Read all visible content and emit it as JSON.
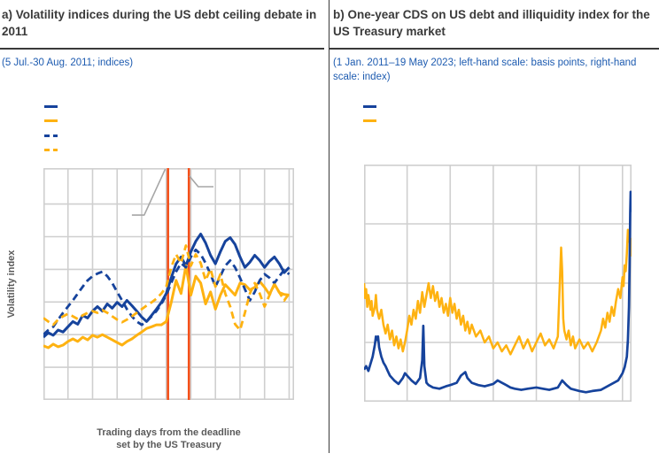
{
  "page": {
    "background": "#ffffff",
    "divider_color": "#3a3a3a"
  },
  "colors": {
    "blue": "#16439c",
    "yellow": "#feb211",
    "orange_event_line": "#f4501a",
    "grid": "#cfcfcf",
    "callout_gray": "#a6a6a6",
    "title_text": "#3a3a3a",
    "subtitle_text": "#1d5bb0",
    "axis_label_text": "#5a5a5a"
  },
  "panel_a": {
    "title": "a) Volatility indices during the US debt ceiling debate in 2011",
    "subtitle": "(5 Jul.-30 Aug. 2011; indices)",
    "ylabel": "Volatility index",
    "xlabel_line1": "Trading days from the deadline",
    "xlabel_line2": "set by the US Treasury",
    "legend": [
      {
        "name": "blue-solid",
        "color": "#16439c",
        "style": "solid",
        "label": ""
      },
      {
        "name": "yellow-solid",
        "color": "#feb211",
        "style": "solid",
        "label": ""
      },
      {
        "name": "blue-dashed",
        "color": "#16439c",
        "style": "dashed",
        "label": ""
      },
      {
        "name": "yellow-dashed",
        "color": "#feb211",
        "style": "dashed",
        "label": ""
      }
    ]
  },
  "panel_b": {
    "title": "b) One-year CDS on US debt and illiquidity index for the US Treasury market",
    "subtitle": "(1 Jan. 2011–19 May 2023; left-hand scale: basis points, right-hand scale: index)",
    "legend": [
      {
        "name": "blue-solid",
        "color": "#16439c",
        "style": "solid",
        "label": ""
      },
      {
        "name": "yellow-solid",
        "color": "#feb211",
        "style": "solid",
        "label": ""
      }
    ]
  },
  "chart_data": [
    {
      "type": "line",
      "title": "a) Volatility indices during the US debt ceiling debate in 2011",
      "subtitle": "(5 Jul.-30 Aug. 2011; indices)",
      "xlabel": "Trading days from the deadline set by the US Treasury",
      "ylabel": "Volatility index",
      "x_range": [
        -25,
        26
      ],
      "y_left_range": [
        0,
        71
      ],
      "x_gridlines": [
        -20,
        -15,
        -10,
        -5,
        0,
        5,
        10,
        15,
        20,
        25
      ],
      "y_gridlines": [
        10,
        20,
        30,
        40,
        50,
        60
      ],
      "grid_color": "#cfcfcf",
      "x": [
        -25,
        -24,
        -23,
        -22,
        -21,
        -20,
        -19,
        -18,
        -17,
        -16,
        -15,
        -14,
        -13,
        -12,
        -11,
        -10,
        -9,
        -8,
        -7,
        -6,
        -5,
        -4,
        -3,
        -2,
        -1,
        0,
        1,
        2,
        3,
        4,
        5,
        6,
        7,
        8,
        9,
        10,
        11,
        12,
        13,
        14,
        15,
        16,
        17,
        18,
        19,
        20,
        21,
        22,
        23,
        24,
        25
      ],
      "series": [
        {
          "name": "blue-solid",
          "color": "#16439c",
          "style": "solid",
          "width": 3,
          "scale": "left",
          "values": [
            19.2,
            20.6,
            19.8,
            21.4,
            20.8,
            22.4,
            24,
            23.2,
            25.9,
            25.1,
            27.2,
            28.6,
            27.2,
            29.4,
            28.1,
            29.9,
            28.6,
            30.5,
            28.9,
            27.2,
            25.4,
            24,
            25.9,
            27.8,
            29.9,
            32.6,
            37.4,
            41.7,
            43.8,
            41.1,
            45.4,
            48.6,
            50.8,
            48.1,
            44.3,
            41.7,
            45.4,
            48.6,
            49.7,
            47.6,
            43.8,
            40.6,
            42.2,
            44.3,
            42.7,
            40.6,
            42.5,
            43.8,
            41.7,
            39,
            40.6
          ]
        },
        {
          "name": "yellow-solid",
          "color": "#feb211",
          "style": "solid",
          "width": 3,
          "scale": "left",
          "values": [
            16.6,
            16,
            17.1,
            16.3,
            16.8,
            17.9,
            18.7,
            17.9,
            19.2,
            18.4,
            19.8,
            19.2,
            20,
            19.2,
            18.4,
            17.6,
            16.8,
            17.9,
            18.7,
            19.8,
            20.8,
            21.9,
            22.4,
            23,
            23,
            24,
            29.9,
            36.6,
            32.6,
            41.1,
            32.1,
            37.9,
            35.8,
            29.4,
            33.1,
            27.8,
            32.1,
            35.3,
            33.7,
            32.1,
            35.8,
            35.3,
            33.7,
            34.5,
            36.3,
            34.5,
            32.3,
            35.5,
            32.9,
            32.3,
            32.1
          ]
        },
        {
          "name": "blue-dashed",
          "color": "#16439c",
          "style": "dashed",
          "width": 2.8,
          "scale": "left",
          "values": [
            20,
            21.4,
            22.4,
            24.6,
            26.7,
            28.6,
            30.5,
            32.6,
            34.7,
            36.6,
            37.9,
            38.7,
            39.3,
            37.9,
            35.8,
            33.1,
            30.5,
            27.8,
            25.6,
            24,
            23,
            24,
            25.6,
            27.2,
            29.4,
            32.1,
            35.8,
            39.3,
            41.9,
            40.6,
            43.8,
            46,
            44.6,
            41.9,
            38.5,
            34.7,
            37.9,
            41.1,
            42.7,
            40.6,
            37.4,
            33.9,
            30.5,
            33.1,
            36.6,
            38.5,
            37.4,
            35.8,
            37.9,
            39.8,
            38.5
          ]
        },
        {
          "name": "yellow-dashed",
          "color": "#feb211",
          "style": "dashed",
          "width": 2.8,
          "scale": "left",
          "values": [
            25.1,
            24,
            23,
            24.6,
            25.6,
            26.4,
            25.6,
            24.8,
            25.9,
            26.7,
            27.2,
            26.7,
            27.5,
            26.7,
            25.6,
            24.6,
            23.8,
            24.6,
            25.6,
            26.7,
            27.8,
            28.9,
            29.9,
            31,
            32.6,
            34.7,
            40.6,
            44.6,
            41.9,
            47.3,
            41.1,
            44.6,
            41.9,
            36.6,
            40.1,
            34.7,
            38.5,
            32.6,
            28.6,
            23.2,
            21.4,
            26.7,
            32.6,
            35.8,
            32.6,
            28.6,
            32.1,
            35.3,
            32.9,
            30.5,
            32.6
          ]
        }
      ],
      "vlines": [
        {
          "name": "deadline-event-line",
          "x": 0.35,
          "color": "#f4501a",
          "width": 2.6
        },
        {
          "name": "downgrade-event-line",
          "x": 4.6,
          "color": "#f4501a",
          "width": 2.6
        }
      ],
      "annotations": [
        {
          "type": "polyline",
          "name": "callout-line-left",
          "color": "#a6a6a6",
          "width": 1.6,
          "points": [
            [
              -7,
              56.6
            ],
            [
              -4.5,
              56.6
            ],
            [
              -0.2,
              70.7
            ]
          ]
        },
        {
          "type": "polyline",
          "name": "callout-line-right",
          "color": "#a6a6a6",
          "width": 1.6,
          "points": [
            [
              4.7,
              68.6
            ],
            [
              6.5,
              65.3
            ],
            [
              9.6,
              65.3
            ]
          ]
        }
      ]
    },
    {
      "type": "line",
      "title": "b) One-year CDS on US debt and illiquidity index for the US Treasury market",
      "subtitle": "(1 Jan. 2011–19 May 2023; left-hand scale: basis points, right-hand scale: index)",
      "x_range": [
        2011,
        2023.42
      ],
      "y_left_range": [
        0,
        200
      ],
      "y_right_range": [
        0,
        4
      ],
      "x_gridlines": [
        2013,
        2015,
        2017,
        2019,
        2021,
        2023
      ],
      "y_gridlines": [
        50,
        100,
        150
      ],
      "grid_color": "#cfcfcf",
      "series": [
        {
          "name": "yellow-illiquidity-index",
          "color": "#feb211",
          "style": "solid",
          "width": 2.5,
          "scale": "right",
          "x": [
            2011,
            2011.05,
            2011.1,
            2011.15,
            2011.2,
            2011.3,
            2011.35,
            2011.4,
            2011.5,
            2011.55,
            2011.6,
            2011.7,
            2011.8,
            2011.9,
            2012,
            2012.1,
            2012.2,
            2012.3,
            2012.4,
            2012.5,
            2012.6,
            2012.7,
            2012.8,
            2012.9,
            2013,
            2013.1,
            2013.2,
            2013.3,
            2013.4,
            2013.5,
            2013.6,
            2013.7,
            2013.8,
            2013.9,
            2014,
            2014.1,
            2014.2,
            2014.3,
            2014.4,
            2014.5,
            2014.6,
            2014.7,
            2014.8,
            2014.9,
            2015,
            2015.1,
            2015.2,
            2015.3,
            2015.4,
            2015.5,
            2015.6,
            2015.7,
            2015.8,
            2015.9,
            2016,
            2016.2,
            2016.4,
            2016.6,
            2016.8,
            2017,
            2017.2,
            2017.4,
            2017.6,
            2017.8,
            2018,
            2018.2,
            2018.4,
            2018.6,
            2018.8,
            2019,
            2019.2,
            2019.4,
            2019.6,
            2019.8,
            2020,
            2020.15,
            2020.2,
            2020.25,
            2020.3,
            2020.4,
            2020.5,
            2020.6,
            2020.7,
            2020.8,
            2021,
            2021.2,
            2021.4,
            2021.6,
            2021.8,
            2022,
            2022.1,
            2022.2,
            2022.3,
            2022.4,
            2022.5,
            2022.6,
            2022.7,
            2022.8,
            2022.9,
            2023,
            2023.05,
            2023.1,
            2023.15,
            2023.2,
            2023.25,
            2023.3,
            2023.33,
            2023.36,
            2023.38,
            2023.4,
            2023.42
          ],
          "values": [
            2,
            1.75,
            1.9,
            1.6,
            1.8,
            1.55,
            1.7,
            1.45,
            1.6,
            1.8,
            1.55,
            1.4,
            1.55,
            1.3,
            1.15,
            1.3,
            1.05,
            1.2,
            0.95,
            1.1,
            0.9,
            1.05,
            0.85,
            1,
            1.2,
            1.45,
            1.3,
            1.55,
            1.4,
            1.7,
            1.5,
            1.85,
            1.6,
            1.8,
            2,
            1.75,
            1.95,
            1.7,
            1.85,
            1.6,
            1.75,
            1.5,
            1.65,
            1.45,
            1.75,
            1.5,
            1.65,
            1.4,
            1.55,
            1.3,
            1.45,
            1.2,
            1.35,
            1.15,
            1.3,
            1.1,
            1.2,
            1,
            1.1,
            0.9,
            1,
            0.85,
            0.95,
            0.8,
            0.95,
            1.1,
            0.9,
            1.05,
            0.85,
            1,
            1.15,
            0.95,
            1.05,
            0.9,
            1.1,
            2.6,
            2.2,
            1.4,
            1.2,
            1.05,
            1.2,
            0.95,
            1.1,
            0.9,
            1.05,
            0.9,
            1,
            0.85,
            1,
            1.2,
            1.4,
            1.25,
            1.5,
            1.35,
            1.6,
            1.45,
            1.7,
            1.9,
            1.75,
            2.1,
            1.95,
            2.3,
            2.2,
            2.5,
            2.9,
            2.7,
            2.85,
            2.6,
            2.75,
            2.5,
            2.45
          ]
        },
        {
          "name": "blue-one-year-cds",
          "color": "#16439c",
          "style": "solid",
          "width": 2.7,
          "scale": "left",
          "x": [
            2011,
            2011.1,
            2011.2,
            2011.3,
            2011.4,
            2011.5,
            2011.55,
            2011.6,
            2011.65,
            2011.7,
            2011.8,
            2011.9,
            2012,
            2012.1,
            2012.2,
            2012.4,
            2012.6,
            2012.8,
            2012.9,
            2013,
            2013.2,
            2013.4,
            2013.6,
            2013.7,
            2013.75,
            2013.8,
            2013.9,
            2014,
            2014.2,
            2014.5,
            2014.8,
            2015,
            2015.3,
            2015.5,
            2015.7,
            2015.8,
            2016,
            2016.3,
            2016.6,
            2017,
            2017.2,
            2017.4,
            2017.6,
            2017.8,
            2018,
            2018.3,
            2018.6,
            2019,
            2019.3,
            2019.6,
            2020,
            2020.2,
            2020.4,
            2020.6,
            2021,
            2021.3,
            2021.6,
            2022,
            2022.3,
            2022.6,
            2022.8,
            2023,
            2023.1,
            2023.2,
            2023.25,
            2023.3,
            2023.33,
            2023.36,
            2023.38,
            2023.4,
            2023.42
          ],
          "values": [
            27,
            30,
            26,
            32,
            38,
            48,
            55,
            52,
            55,
            46,
            38,
            33,
            30,
            26,
            22,
            18,
            15,
            20,
            24,
            22,
            18,
            15,
            20,
            35,
            64,
            30,
            16,
            14,
            12,
            11,
            13,
            14,
            16,
            22,
            25,
            20,
            16,
            14,
            13,
            15,
            18,
            16,
            14,
            12,
            11,
            10,
            11,
            12,
            11,
            10,
            12,
            18,
            14,
            11,
            9,
            8,
            9,
            10,
            13,
            16,
            18,
            24,
            29,
            38,
            52,
            80,
            115,
            160,
            177,
            168,
            160
          ]
        }
      ],
      "vlines": [],
      "annotations": []
    }
  ]
}
